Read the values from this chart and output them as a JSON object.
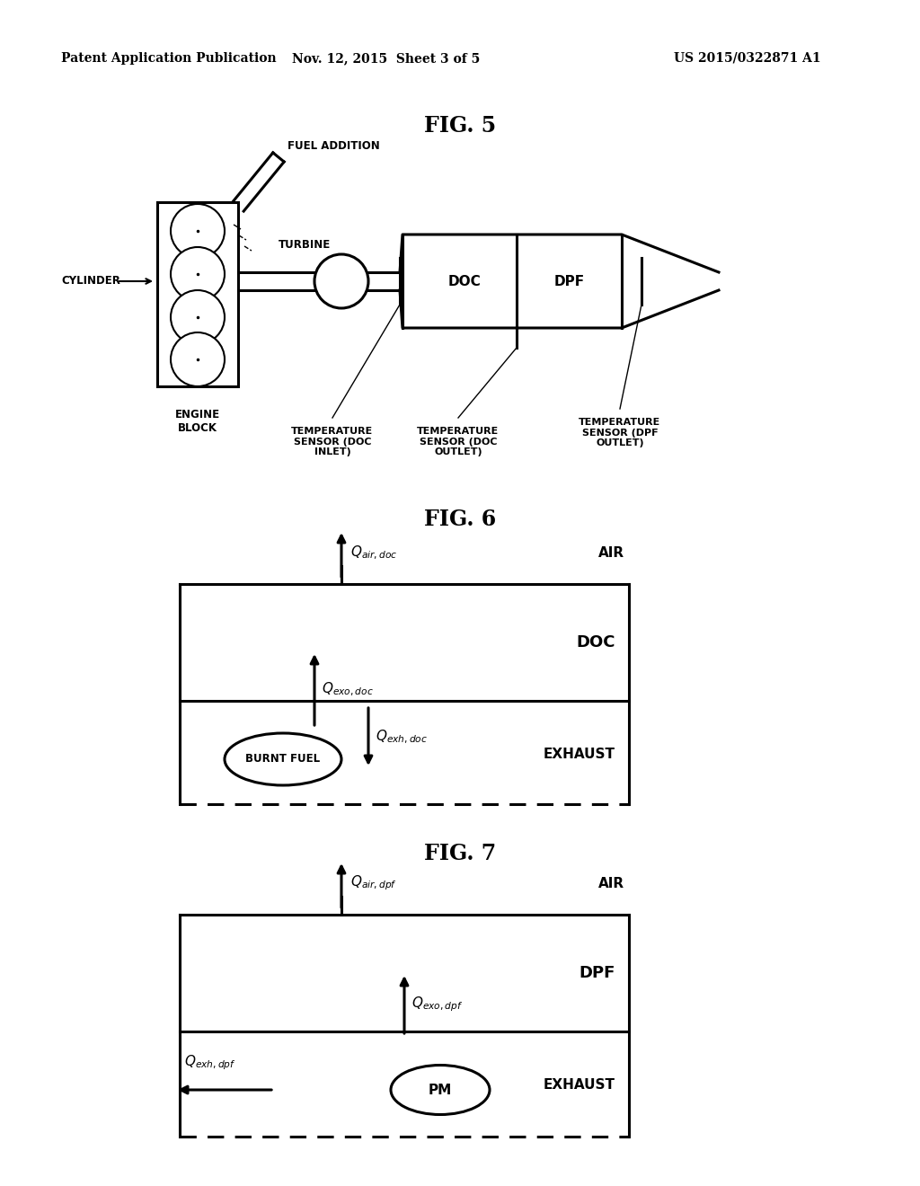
{
  "bg_color": "#ffffff",
  "header_text1": "Patent Application Publication",
  "header_text2": "Nov. 12, 2015  Sheet 3 of 5",
  "header_text3": "US 2015/0322871 A1",
  "fig5_title": "FIG. 5",
  "fig6_title": "FIG. 6",
  "fig7_title": "FIG. 7",
  "fig5_labels": {
    "cylinder": "CYLINDER",
    "engine_block": "ENGINE\nBLOCK",
    "fuel_addition": "FUEL ADDITION",
    "turbine": "TURBINE",
    "doc": "DOC",
    "dpf": "DPF",
    "temp_sensor_doc_inlet": "TEMPERATURE\nSENSOR (DOC\nINLET)",
    "temp_sensor_doc_outlet": "TEMPERATURE\nSENSOR (DOC\nOUTLET)",
    "temp_sensor_dpf_outlet": "TEMPERATURE\nSENSOR (DPF\nOUTLET)"
  },
  "fig6_labels": {
    "air": "AIR",
    "doc": "DOC",
    "exhaust": "EXHAUST",
    "burnt_fuel": "BURNT FUEL",
    "q_air_doc": "$\\mathit{Q}_{air,doc}$",
    "q_exo_doc": "$\\mathit{Q}_{exo,doc}$",
    "q_exh_doc": "$\\mathit{Q}_{exh,doc}$"
  },
  "fig7_labels": {
    "air": "AIR",
    "dpf": "DPF",
    "exhaust": "EXHAUST",
    "pm": "PM",
    "q_air_dpf": "$\\mathit{Q}_{air,dpf}$",
    "q_exo_dpf": "$\\mathit{Q}_{exo,dpf}$",
    "q_exh_dpf": "$\\mathit{Q}_{exh,dpf}$"
  }
}
